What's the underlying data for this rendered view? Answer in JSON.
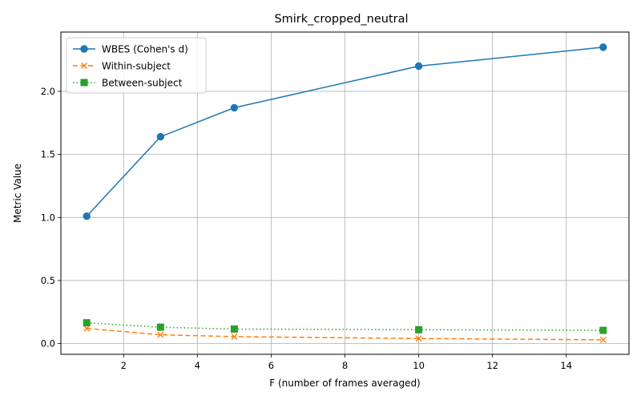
{
  "chart_data": {
    "type": "line",
    "title": "Smirk_cropped_neutral",
    "xlabel": "F (number of frames averaged)",
    "ylabel": "Metric Value",
    "xlim": [
      0.3,
      15.7
    ],
    "ylim": [
      -0.085,
      2.47
    ],
    "xticks": [
      2,
      4,
      6,
      8,
      10,
      12,
      14
    ],
    "xtick_labels": [
      "2",
      "4",
      "6",
      "8",
      "10",
      "12",
      "14"
    ],
    "yticks": [
      0.0,
      0.5,
      1.0,
      1.5,
      2.0
    ],
    "ytick_labels": [
      "0.0",
      "0.5",
      "1.0",
      "1.5",
      "2.0"
    ],
    "grid": true,
    "legend_position": "top-left",
    "x": [
      1,
      3,
      5,
      10,
      15
    ],
    "series": [
      {
        "name": "WBES (Cohen's d)",
        "values": [
          1.01,
          1.64,
          1.87,
          2.2,
          2.35
        ],
        "color": "#1f77b4",
        "line_style": "solid",
        "marker": "circle"
      },
      {
        "name": "Within-subject",
        "values": [
          0.12,
          0.07,
          0.055,
          0.04,
          0.03
        ],
        "color": "#ff7f0e",
        "line_style": "dashed",
        "marker": "x"
      },
      {
        "name": "Between-subject",
        "values": [
          0.165,
          0.13,
          0.115,
          0.11,
          0.105
        ],
        "color": "#2ca02c",
        "line_style": "dotted",
        "marker": "square"
      }
    ]
  }
}
